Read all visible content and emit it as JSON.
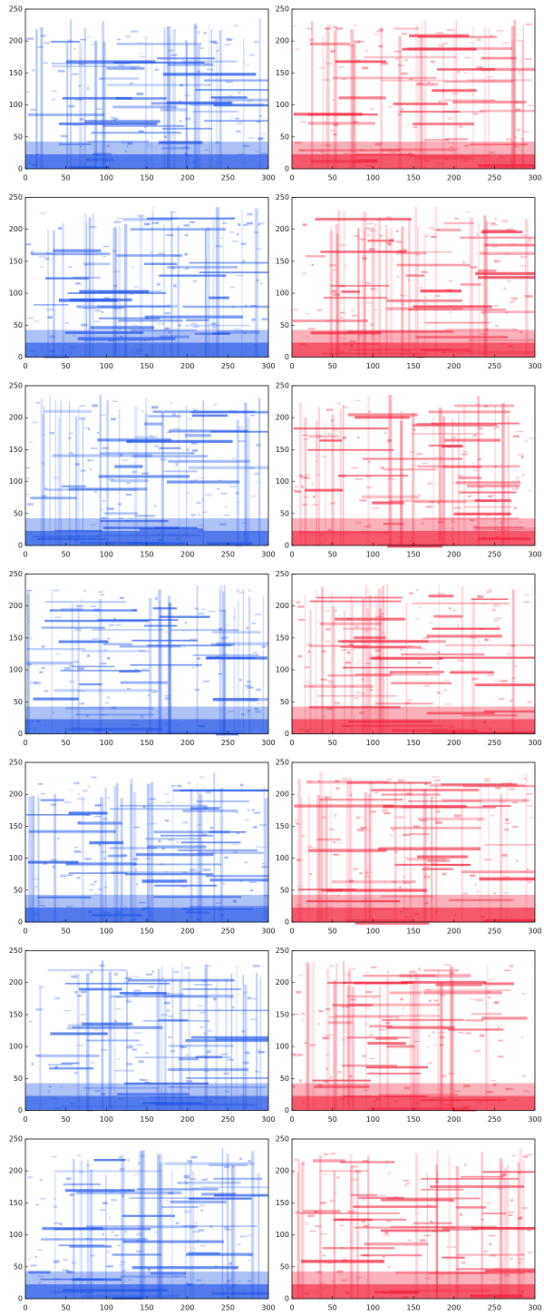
{
  "chart_data": [
    {
      "type": "heatmap",
      "color": "#1a4fe6",
      "xlim": [
        0,
        300
      ],
      "xticks": [
        0,
        50,
        100,
        150,
        200,
        250,
        300
      ],
      "ylim": [
        0,
        250
      ],
      "yticks": [
        0,
        50,
        100,
        150,
        200,
        250
      ]
    },
    {
      "type": "heatmap",
      "color": "#f0203c",
      "xlim": [
        0,
        300
      ],
      "xticks": [
        0,
        50,
        100,
        150,
        200,
        250,
        300
      ],
      "ylim": [
        0,
        250
      ],
      "yticks": [
        0,
        50,
        100,
        150,
        200,
        250
      ]
    },
    {
      "type": "heatmap",
      "color": "#1a4fe6",
      "xlim": [
        0,
        300
      ],
      "xticks": [
        0,
        50,
        100,
        150,
        200,
        250,
        300
      ],
      "ylim": [
        0,
        250
      ],
      "yticks": [
        0,
        50,
        100,
        150,
        200,
        250
      ]
    },
    {
      "type": "heatmap",
      "color": "#f0203c",
      "xlim": [
        0,
        300
      ],
      "xticks": [
        0,
        50,
        100,
        150,
        200,
        250,
        300
      ],
      "ylim": [
        0,
        250
      ],
      "yticks": [
        0,
        50,
        100,
        150,
        200,
        250
      ]
    },
    {
      "type": "heatmap",
      "color": "#1a4fe6",
      "xlim": [
        0,
        300
      ],
      "xticks": [
        0,
        50,
        100,
        150,
        200,
        250,
        300
      ],
      "ylim": [
        0,
        250
      ],
      "yticks": [
        0,
        50,
        100,
        150,
        200,
        250
      ]
    },
    {
      "type": "heatmap",
      "color": "#f0203c",
      "xlim": [
        0,
        300
      ],
      "xticks": [
        0,
        50,
        100,
        150,
        200,
        250,
        300
      ],
      "ylim": [
        0,
        250
      ],
      "yticks": [
        0,
        50,
        100,
        150,
        200,
        250
      ]
    },
    {
      "type": "heatmap",
      "color": "#1a4fe6",
      "xlim": [
        0,
        300
      ],
      "xticks": [
        0,
        50,
        100,
        150,
        200,
        250,
        300
      ],
      "ylim": [
        0,
        250
      ],
      "yticks": [
        0,
        50,
        100,
        150,
        200,
        250
      ]
    },
    {
      "type": "heatmap",
      "color": "#f0203c",
      "xlim": [
        0,
        300
      ],
      "xticks": [
        0,
        50,
        100,
        150,
        200,
        250,
        300
      ],
      "ylim": [
        0,
        250
      ],
      "yticks": [
        0,
        50,
        100,
        150,
        200,
        250
      ]
    },
    {
      "type": "heatmap",
      "color": "#1a4fe6",
      "xlim": [
        0,
        300
      ],
      "xticks": [
        0,
        50,
        100,
        150,
        200,
        250,
        300
      ],
      "ylim": [
        0,
        250
      ],
      "yticks": [
        0,
        50,
        100,
        150,
        200,
        250
      ]
    },
    {
      "type": "heatmap",
      "color": "#f0203c",
      "xlim": [
        0,
        300
      ],
      "xticks": [
        0,
        50,
        100,
        150,
        200,
        250,
        300
      ],
      "ylim": [
        0,
        250
      ],
      "yticks": [
        0,
        50,
        100,
        150,
        200,
        250
      ]
    },
    {
      "type": "heatmap",
      "color": "#1a4fe6",
      "xlim": [
        0,
        300
      ],
      "xticks": [
        0,
        50,
        100,
        150,
        200,
        250,
        300
      ],
      "ylim": [
        0,
        250
      ],
      "yticks": [
        0,
        50,
        100,
        150,
        200,
        250
      ]
    },
    {
      "type": "heatmap",
      "color": "#f0203c",
      "xlim": [
        0,
        300
      ],
      "xticks": [
        0,
        50,
        100,
        150,
        200,
        250,
        300
      ],
      "ylim": [
        0,
        250
      ],
      "yticks": [
        0,
        50,
        100,
        150,
        200,
        250
      ]
    },
    {
      "type": "heatmap",
      "color": "#1a4fe6",
      "xlim": [
        0,
        300
      ],
      "xticks": [
        0,
        50,
        100,
        150,
        200,
        250,
        300
      ],
      "ylim": [
        0,
        250
      ],
      "yticks": [
        0,
        50,
        100,
        150,
        200,
        250
      ]
    },
    {
      "type": "heatmap",
      "color": "#f0203c",
      "xlim": [
        0,
        300
      ],
      "xticks": [
        0,
        50,
        100,
        150,
        200,
        250,
        300
      ],
      "ylim": [
        0,
        250
      ],
      "yticks": [
        0,
        50,
        100,
        150,
        200,
        250
      ]
    }
  ]
}
